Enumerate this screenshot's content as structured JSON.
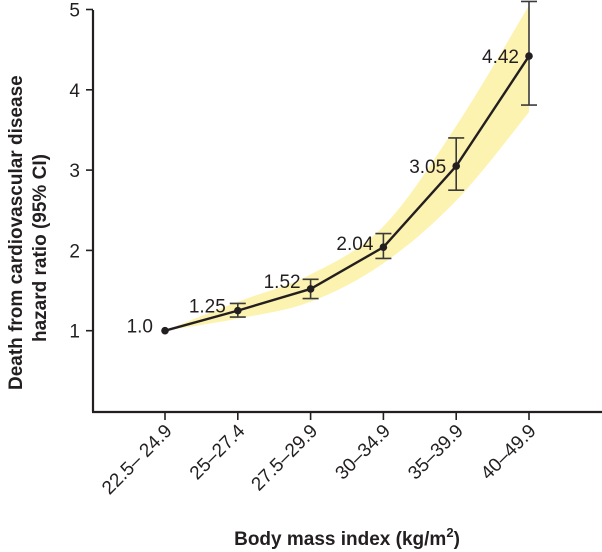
{
  "chart_data": {
    "type": "line",
    "title": "",
    "xlabel": "Body mass index (kg/m",
    "xlabel_superscript": "2",
    "xlabel_suffix": ")",
    "ylabel_line1": "Death from cardiovascular disease",
    "ylabel_line2": "hazard ratio (95% CI)",
    "ylim": [
      0,
      5
    ],
    "yticks": [
      1,
      2,
      3,
      4,
      5
    ],
    "ytick_labels": [
      "1",
      "2",
      "3",
      "4",
      "5"
    ],
    "categories": [
      "22.5– 24.9",
      "25–27.4",
      "27.5–29.9",
      "30–34.9",
      "35–39.9",
      "40–49.9"
    ],
    "series": [
      {
        "name": "Hazard ratio",
        "values": [
          1.0,
          1.25,
          1.52,
          2.04,
          3.05,
          4.42
        ],
        "data_labels": [
          "1.0",
          "1.25",
          "1.52",
          "2.04",
          "3.05",
          "4.42"
        ],
        "ci_lower": [
          null,
          1.17,
          1.4,
          1.9,
          2.75,
          3.81
        ],
        "ci_upper": [
          null,
          1.34,
          1.64,
          2.21,
          3.4,
          5.1
        ],
        "band_lower": [
          1.0,
          1.15,
          1.36,
          1.84,
          2.62,
          3.72
        ],
        "band_upper": [
          1.0,
          1.36,
          1.7,
          2.3,
          3.55,
          5.05
        ]
      }
    ],
    "grid": false,
    "legend": "none",
    "colors": {
      "line": "#231f20",
      "ci_band": "#fdf3b0",
      "axis": "#231f20",
      "error_bar": "#3a3a3a"
    }
  }
}
